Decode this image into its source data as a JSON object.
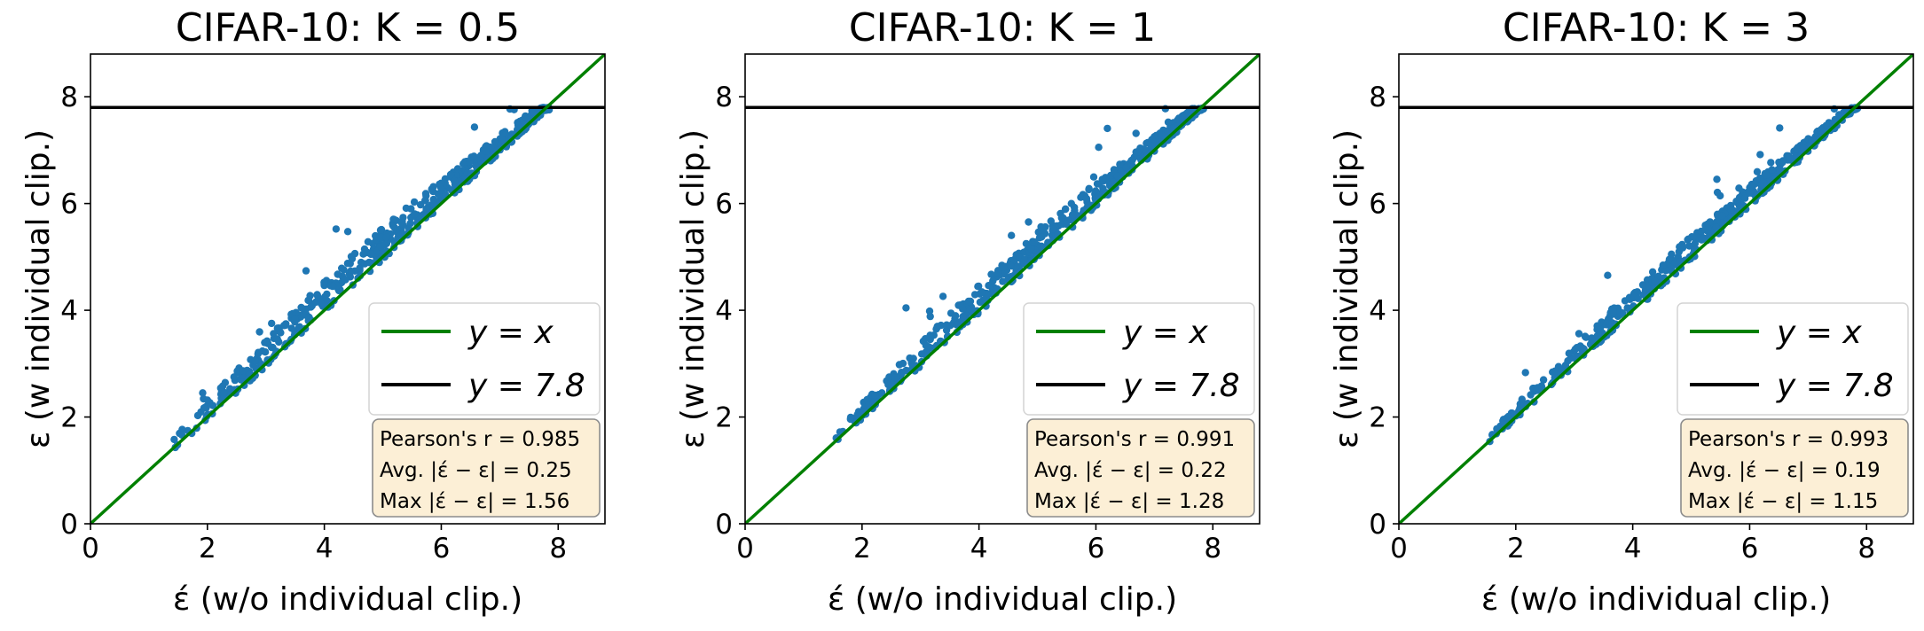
{
  "colors": {
    "points": "#1f77b4",
    "identity_line": "#008000",
    "cap_line": "#000000",
    "stats_box_fill": "#fcefd6",
    "stats_box_edge": "#8c8c8c",
    "legend_edge": "#d4d4d4"
  },
  "chart_data": [
    {
      "type": "scatter",
      "title": "CIFAR-10: K = 0.5",
      "xlabel": "έ (w/o individual clip.)",
      "ylabel": "ε (w individual clip.)",
      "xlim": [
        0,
        8.8
      ],
      "ylim": [
        0,
        8.8
      ],
      "xticks": [
        "0",
        "2",
        "4",
        "6",
        "8"
      ],
      "yticks": [
        "0",
        "2",
        "4",
        "6",
        "8"
      ],
      "grid": false,
      "legend_position": "center-right",
      "legend": [
        {
          "label": "y = x",
          "line": "identity"
        },
        {
          "label": "y = 7.8",
          "line": "cap"
        }
      ],
      "cap_y": 7.8,
      "x_range": [
        1.35,
        7.85
      ],
      "mean_offset": 0.25,
      "max_offset": 1.56,
      "num_points": 500,
      "stats": [
        "Pearson's r = 0.985",
        "Avg. |έ − ε| = 0.25",
        "Max |έ − ε| = 1.56"
      ]
    },
    {
      "type": "scatter",
      "title": "CIFAR-10: K = 1",
      "xlabel": "έ (w/o individual clip.)",
      "ylabel": "ε (w individual clip.)",
      "xlim": [
        0,
        8.8
      ],
      "ylim": [
        0,
        8.8
      ],
      "xticks": [
        "0",
        "2",
        "4",
        "6",
        "8"
      ],
      "yticks": [
        "0",
        "2",
        "4",
        "6",
        "8"
      ],
      "grid": false,
      "legend_position": "center-right",
      "legend": [
        {
          "label": "y = x",
          "line": "identity"
        },
        {
          "label": "y = 7.8",
          "line": "cap"
        }
      ],
      "cap_y": 7.8,
      "x_range": [
        1.3,
        7.85
      ],
      "mean_offset": 0.22,
      "max_offset": 1.28,
      "num_points": 500,
      "stats": [
        "Pearson's r = 0.991",
        "Avg. |έ − ε| = 0.22",
        "Max |έ − ε| = 1.28"
      ]
    },
    {
      "type": "scatter",
      "title": "CIFAR-10: K = 3",
      "xlabel": "έ (w/o individual clip.)",
      "ylabel": "ε (w individual clip.)",
      "xlim": [
        0,
        8.8
      ],
      "ylim": [
        0,
        8.8
      ],
      "xticks": [
        "0",
        "2",
        "4",
        "6",
        "8"
      ],
      "yticks": [
        "0",
        "2",
        "4",
        "6",
        "8"
      ],
      "grid": false,
      "legend_position": "center-right",
      "legend": [
        {
          "label": "y = x",
          "line": "identity"
        },
        {
          "label": "y = 7.8",
          "line": "cap"
        }
      ],
      "cap_y": 7.8,
      "x_range": [
        1.4,
        7.85
      ],
      "mean_offset": 0.19,
      "max_offset": 1.15,
      "num_points": 500,
      "stats": [
        "Pearson's r = 0.993",
        "Avg. |έ − ε| = 0.19",
        "Max |έ − ε| = 1.15"
      ]
    }
  ]
}
